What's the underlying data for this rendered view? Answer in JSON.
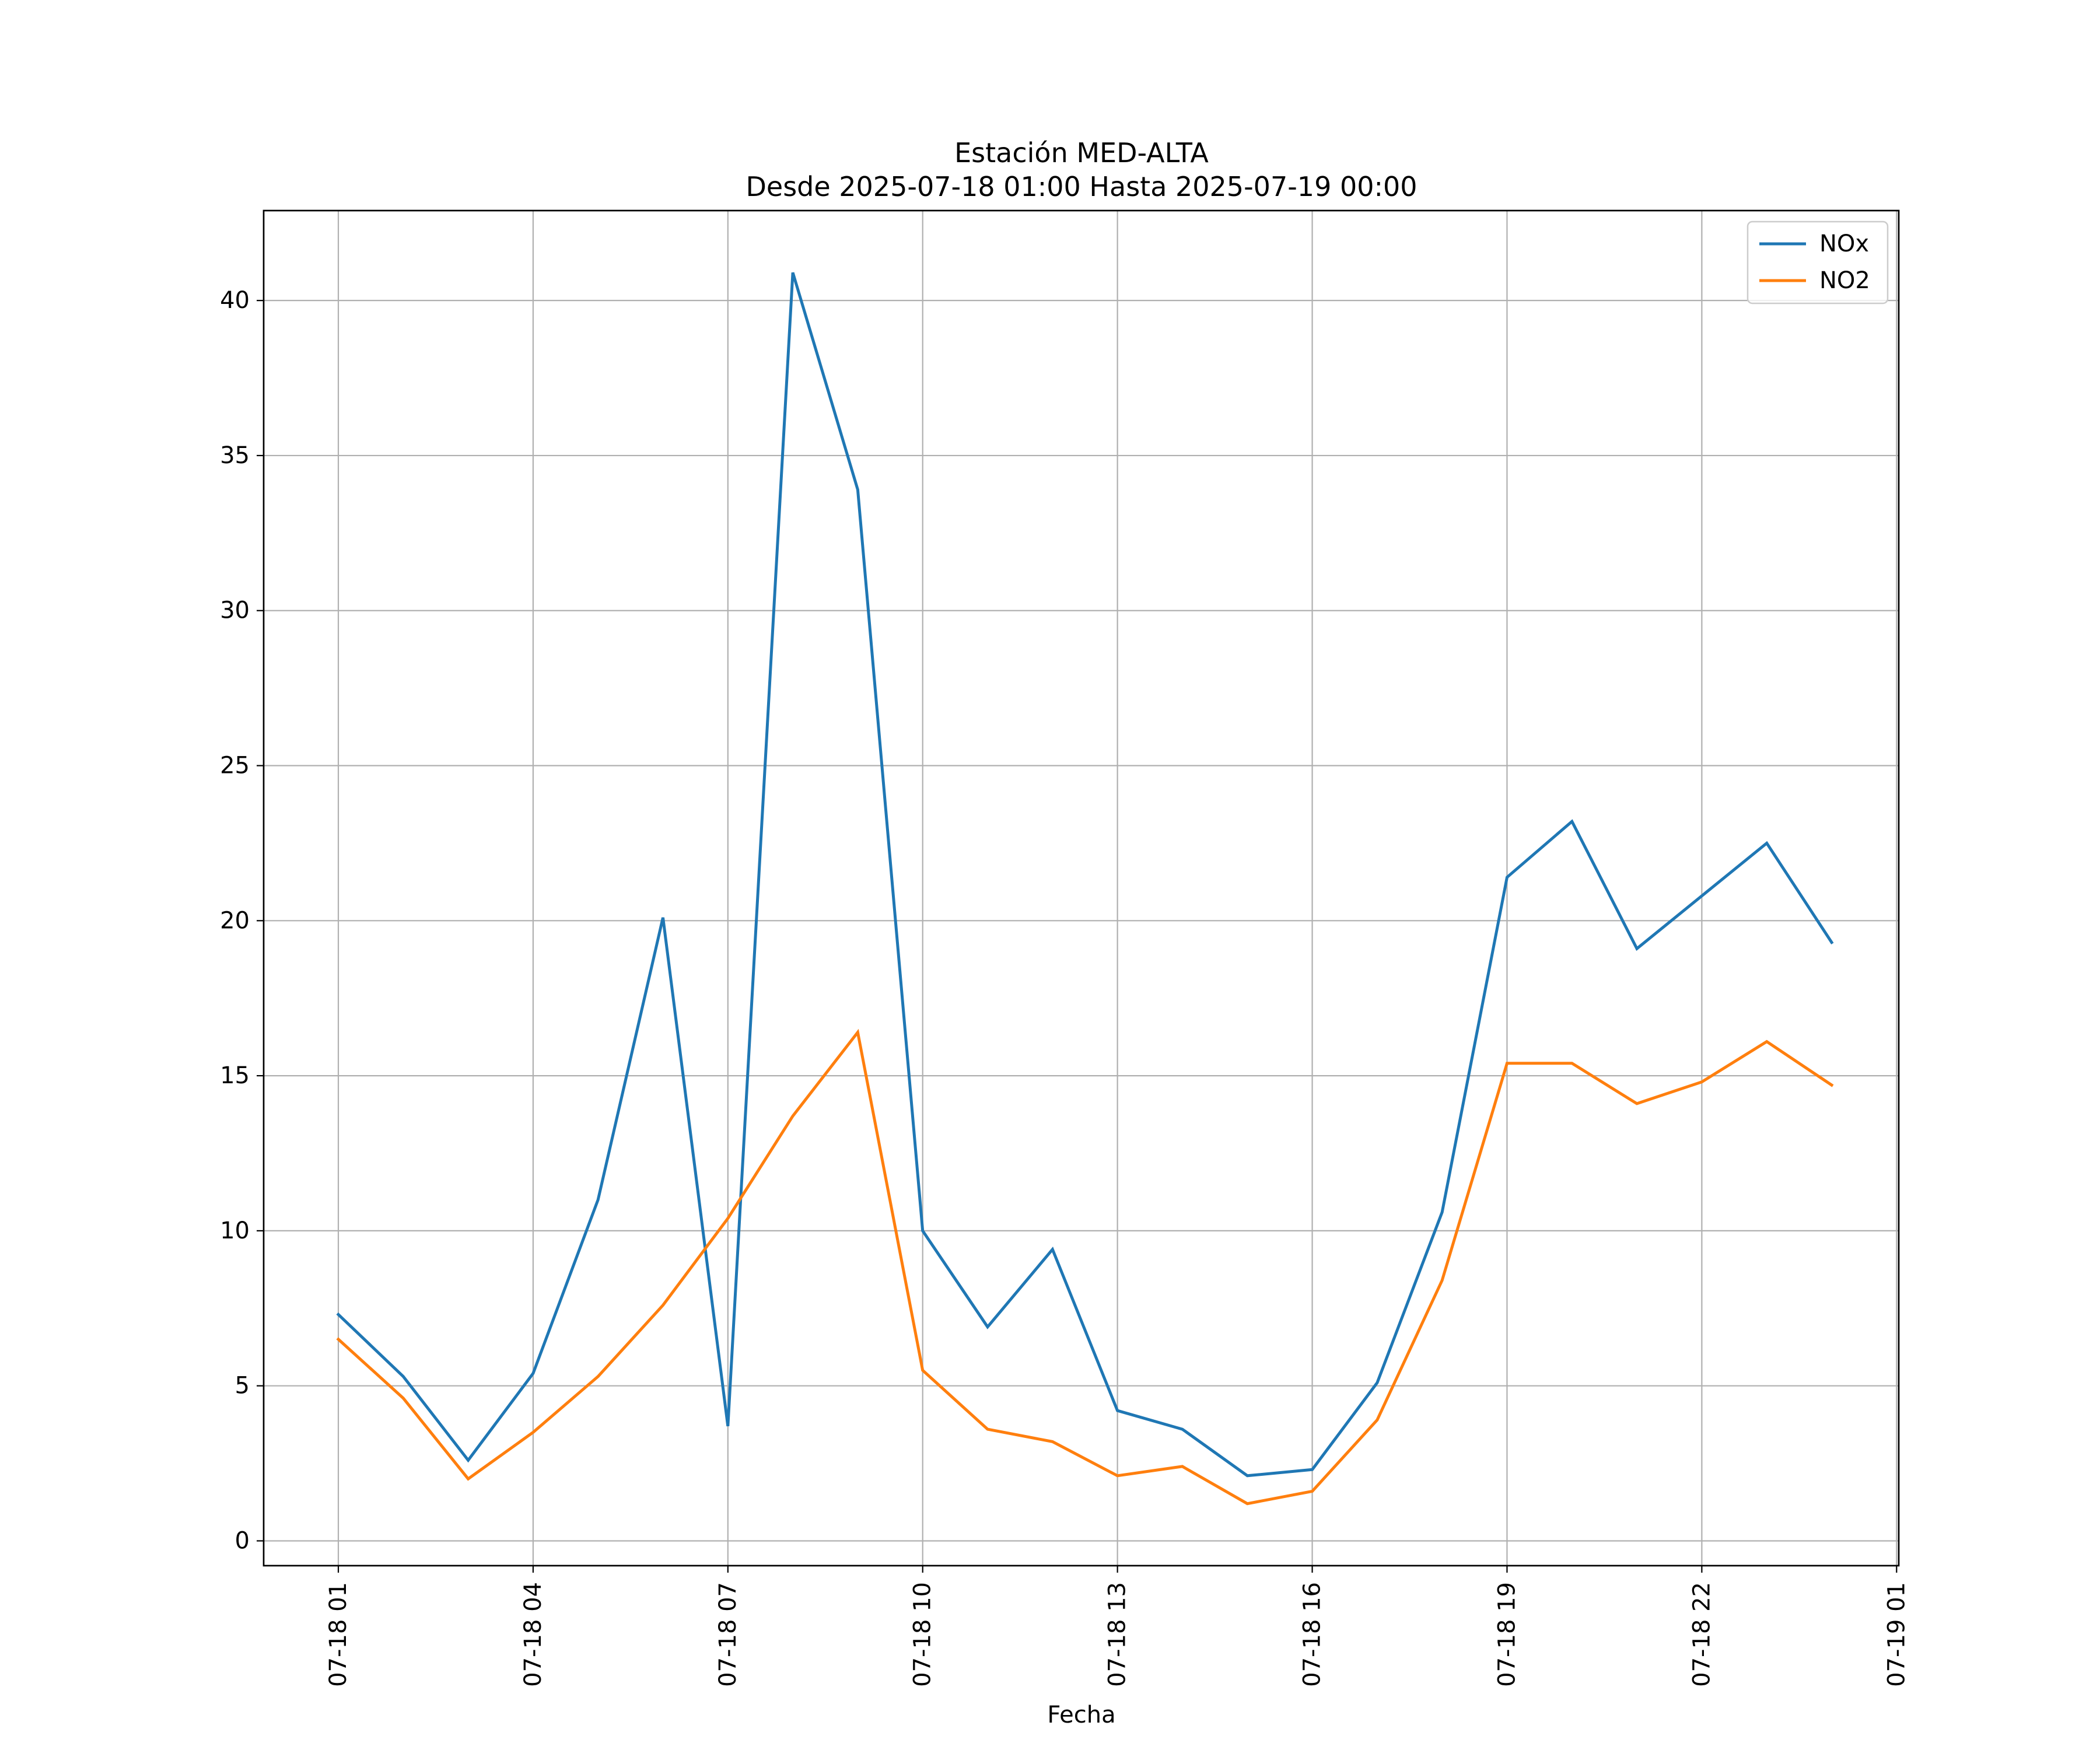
{
  "chart_data": {
    "type": "line",
    "title": "Estación MED-ALTA",
    "subtitle": "Desde 2025-07-18 01:00 Hasta 2025-07-19 00:00",
    "xlabel": "Fecha",
    "ylabel": "",
    "x": [
      "2025-07-18 01:00",
      "2025-07-18 02:00",
      "2025-07-18 03:00",
      "2025-07-18 04:00",
      "2025-07-18 05:00",
      "2025-07-18 06:00",
      "2025-07-18 07:00",
      "2025-07-18 08:00",
      "2025-07-18 09:00",
      "2025-07-18 10:00",
      "2025-07-18 11:00",
      "2025-07-18 12:00",
      "2025-07-18 13:00",
      "2025-07-18 14:00",
      "2025-07-18 15:00",
      "2025-07-18 16:00",
      "2025-07-18 17:00",
      "2025-07-18 18:00",
      "2025-07-18 19:00",
      "2025-07-18 20:00",
      "2025-07-18 21:00",
      "2025-07-18 22:00",
      "2025-07-18 23:00",
      "2025-07-19 00:00"
    ],
    "series": [
      {
        "name": "NOx",
        "color": "#1f77b4",
        "values": [
          7.3,
          5.3,
          2.6,
          5.4,
          11.0,
          20.1,
          3.7,
          40.9,
          33.9,
          10.0,
          6.9,
          9.4,
          4.2,
          3.6,
          2.1,
          2.3,
          5.1,
          10.6,
          21.4,
          23.2,
          19.1,
          20.8,
          22.5,
          19.3
        ]
      },
      {
        "name": "NO2",
        "color": "#ff7f0e",
        "values": [
          6.5,
          4.6,
          2.0,
          3.5,
          5.3,
          7.6,
          10.4,
          13.7,
          16.4,
          5.5,
          3.6,
          3.2,
          2.1,
          2.4,
          1.2,
          1.6,
          3.9,
          8.4,
          15.4,
          15.4,
          14.1,
          14.8,
          16.1,
          14.7
        ]
      }
    ],
    "xticks": [
      {
        "label": "07-18 01",
        "value": "2025-07-18 01:00"
      },
      {
        "label": "07-18 04",
        "value": "2025-07-18 04:00"
      },
      {
        "label": "07-18 07",
        "value": "2025-07-18 07:00"
      },
      {
        "label": "07-18 10",
        "value": "2025-07-18 10:00"
      },
      {
        "label": "07-18 13",
        "value": "2025-07-18 13:00"
      },
      {
        "label": "07-18 16",
        "value": "2025-07-18 16:00"
      },
      {
        "label": "07-18 19",
        "value": "2025-07-18 19:00"
      },
      {
        "label": "07-18 22",
        "value": "2025-07-18 22:00"
      },
      {
        "label": "07-19 01",
        "value": "2025-07-19 01:00"
      }
    ],
    "yticks": [
      0,
      5,
      10,
      15,
      20,
      25,
      30,
      35,
      40
    ],
    "xlim": [
      "2025-07-17 23:51",
      "2025-07-19 01:02"
    ],
    "ylim": [
      -0.8,
      42.9
    ],
    "grid": true,
    "legend_position": "top-right"
  }
}
